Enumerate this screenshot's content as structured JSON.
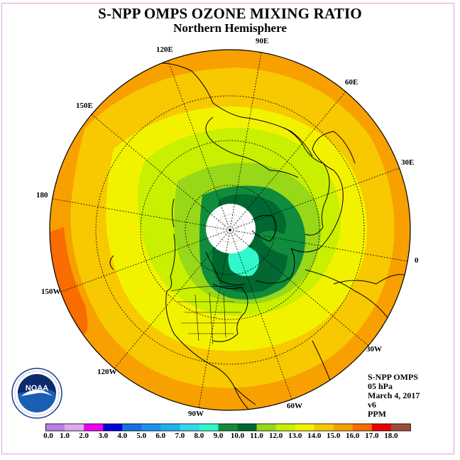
{
  "title": "S-NPP OMPS OZONE MIXING RATIO",
  "subtitle": "Northern Hemisphere",
  "longitude_labels": [
    {
      "label": "90E"
    },
    {
      "label": "60E"
    },
    {
      "label": "30E"
    },
    {
      "label": "0"
    },
    {
      "label": "30W"
    },
    {
      "label": "60W"
    },
    {
      "label": "90W"
    },
    {
      "label": "120W"
    },
    {
      "label": "150W"
    },
    {
      "label": "180"
    },
    {
      "label": "150E"
    },
    {
      "label": "120E"
    }
  ],
  "info": {
    "instrument": "S-NPP OMPS",
    "level": "05 hPa",
    "date": "March 4, 2017",
    "version": "v6",
    "units": "PPM"
  },
  "logo": {
    "text": "NOAA"
  },
  "colorbar": {
    "ticks": [
      "0.0",
      "1.0",
      "2.0",
      "3.0",
      "4.0",
      "5.0",
      "6.0",
      "7.0",
      "8.0",
      "9.0",
      "10.0",
      "11.0",
      "12.0",
      "13.0",
      "14.0",
      "15.0",
      "16.0",
      "17.0",
      "18.0"
    ],
    "colors": [
      "#b57ee8",
      "#dcaaf0",
      "#ee00ee",
      "#0000dd",
      "#1670e0",
      "#1c90ec",
      "#20b0ee",
      "#30d8ee",
      "#30f8cc",
      "#108c3c",
      "#006830",
      "#98d818",
      "#c8f000",
      "#f2f200",
      "#f8c800",
      "#f8a000",
      "#f86c00",
      "#e80000",
      "#985038"
    ]
  },
  "map_colors": {
    "ring_red_orange": "#f86c00",
    "orange": "#f8a000",
    "light_orange": "#f8c800",
    "yellow": "#f2f200",
    "yellow_green": "#c8f000",
    "light_green": "#98d818",
    "green": "#108c3c",
    "dark_green": "#006830",
    "cyan": "#30f8cc",
    "no_data": "#ffffff"
  }
}
